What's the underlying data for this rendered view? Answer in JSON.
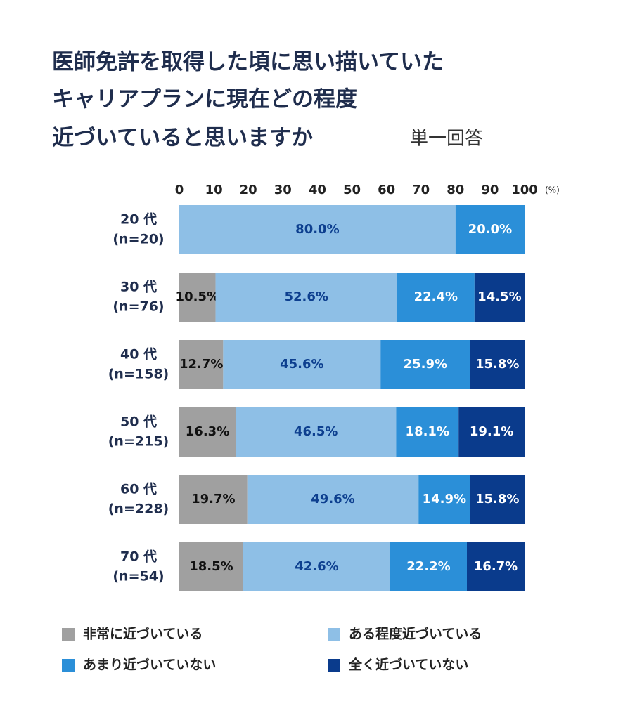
{
  "chart_data": {
    "type": "stacked-bar-horizontal",
    "title": [
      "医師免許を取得した頃に思い描いていた",
      "キャリアプランに現在どの程度",
      "近づいていると思いますか"
    ],
    "subtitle": "単一回答",
    "x_unit": "(%)",
    "categories": [
      [
        "20 代",
        "(n=20)"
      ],
      [
        "30 代",
        "(n=76)"
      ],
      [
        "40 代",
        "(n=158)"
      ],
      [
        "50 代",
        "(n=215)"
      ],
      [
        "60 代",
        "(n=228)"
      ],
      [
        "70 代",
        "(n=54)"
      ]
    ],
    "xlim": [
      0,
      100
    ],
    "xticks": [
      0,
      10,
      20,
      30,
      40,
      50,
      60,
      70,
      80,
      90,
      100
    ],
    "series": [
      {
        "name": "非常に近づいている",
        "color": "#a0a0a0",
        "label_color": "#111111",
        "values": [
          null,
          10.5,
          12.7,
          16.3,
          19.7,
          18.5
        ],
        "value_labels": [
          null,
          "10.5%",
          "12.7%",
          "16.3%",
          "19.7%",
          "18.5%"
        ]
      },
      {
        "name": "ある程度近づいている",
        "color": "#8ebfe6",
        "label_color": "#0d3f8f",
        "values": [
          80.0,
          52.6,
          45.6,
          46.5,
          49.6,
          42.6
        ],
        "value_labels": [
          "80.0%",
          "52.6%",
          "45.6%",
          "46.5%",
          "49.6%",
          "42.6%"
        ]
      },
      {
        "name": "あまり近づいていない",
        "color": "#2b8fd8",
        "label_color": "#ffffff",
        "values": [
          20.0,
          22.4,
          25.9,
          18.1,
          14.9,
          22.2
        ],
        "value_labels": [
          "20.0%",
          "22.4%",
          "25.9%",
          "18.1%",
          "14.9%",
          "22.2%"
        ]
      },
      {
        "name": "全く近づいていない",
        "color": "#0a3b8c",
        "label_color": "#ffffff",
        "values": [
          null,
          14.5,
          15.8,
          19.1,
          15.8,
          16.7
        ],
        "value_labels": [
          null,
          "14.5%",
          "15.8%",
          "19.1%",
          "15.8%",
          "16.7%"
        ]
      }
    ]
  }
}
